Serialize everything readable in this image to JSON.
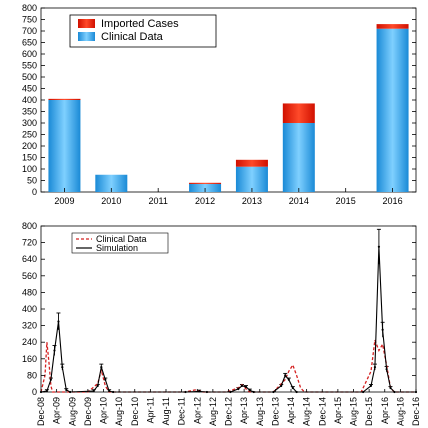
{
  "chart_data": [
    {
      "type": "bar",
      "stacked": true,
      "categories": [
        "2009",
        "2010",
        "2011",
        "2012",
        "2013",
        "2014",
        "2015",
        "2016"
      ],
      "series": [
        {
          "name": "Clinical Data",
          "values": [
            400,
            75,
            0,
            35,
            110,
            300,
            0,
            710
          ],
          "color": "#3aa8e6"
        },
        {
          "name": "Imported Cases",
          "values": [
            5,
            0,
            0,
            5,
            30,
            85,
            0,
            20
          ],
          "color": "#e8200c"
        }
      ],
      "ylim": [
        0,
        800
      ],
      "yticks": [
        0,
        50,
        100,
        150,
        200,
        250,
        300,
        350,
        400,
        450,
        500,
        550,
        600,
        650,
        700,
        750,
        800
      ],
      "legend_position": "top-left",
      "grid": false
    },
    {
      "type": "line",
      "x_ticks": [
        "Dec-08",
        "Apr-09",
        "Aug-09",
        "Dec-09",
        "Apr-10",
        "Aug-10",
        "Dec-10",
        "Apr-11",
        "Aug-11",
        "Dec-11",
        "Apr-12",
        "Aug-12",
        "Dec-12",
        "Apr-13",
        "Aug-13",
        "Dec-13",
        "Apr-14",
        "Aug-14",
        "Dec-14",
        "Apr-15",
        "Aug-15",
        "Dec-15",
        "Apr-16",
        "Aug-16",
        "Dec-16"
      ],
      "x_range": [
        "2008-12",
        "2016-12"
      ],
      "ylim": [
        0,
        800
      ],
      "yticks": [
        0,
        80,
        160,
        240,
        320,
        400,
        480,
        560,
        640,
        720,
        800
      ],
      "legend_position": "top-left",
      "grid": false,
      "series": [
        {
          "name": "Clinical Data",
          "style": "dashed",
          "color": "#d42020",
          "points": [
            [
              "2008-12-01",
              0
            ],
            [
              "2009-01-01",
              80
            ],
            [
              "2009-01-16",
              240
            ],
            [
              "2009-02-01",
              140
            ],
            [
              "2009-02-16",
              30
            ],
            [
              "2009-03-01",
              0
            ],
            [
              "2009-12-01",
              0
            ],
            [
              "2010-02-16",
              40
            ],
            [
              "2010-03-16",
              105
            ],
            [
              "2010-04-16",
              30
            ],
            [
              "2010-05-16",
              0
            ],
            [
              "2012-01-01",
              0
            ],
            [
              "2012-03-16",
              10
            ],
            [
              "2012-04-16",
              5
            ],
            [
              "2012-05-16",
              0
            ],
            [
              "2012-11-16",
              0
            ],
            [
              "2013-02-16",
              20
            ],
            [
              "2013-03-16",
              35
            ],
            [
              "2013-04-16",
              15
            ],
            [
              "2013-05-16",
              0
            ],
            [
              "2013-11-16",
              0
            ],
            [
              "2014-02-16",
              60
            ],
            [
              "2014-03-16",
              100
            ],
            [
              "2014-04-16",
              130
            ],
            [
              "2014-05-16",
              80
            ],
            [
              "2014-06-16",
              20
            ],
            [
              "2014-07-16",
              0
            ],
            [
              "2015-10-01",
              0
            ],
            [
              "2015-12-16",
              100
            ],
            [
              "2016-01-16",
              250
            ],
            [
              "2016-02-16",
              200
            ],
            [
              "2016-03-16",
              230
            ],
            [
              "2016-04-16",
              130
            ],
            [
              "2016-05-16",
              20
            ],
            [
              "2016-06-16",
              0
            ],
            [
              "2016-12-01",
              0
            ]
          ]
        },
        {
          "name": "Simulation",
          "style": "solid",
          "color": "#000000",
          "error_bars": true,
          "points": [
            [
              "2008-12-01",
              0
            ],
            [
              "2009-01-16",
              5
            ],
            [
              "2009-02-16",
              60
            ],
            [
              "2009-03-16",
              200
            ],
            [
              "2009-04-16",
              340
            ],
            [
              "2009-05-16",
              120
            ],
            [
              "2009-06-16",
              10
            ],
            [
              "2009-07-16",
              0
            ],
            [
              "2010-01-16",
              5
            ],
            [
              "2010-02-16",
              30
            ],
            [
              "2010-03-16",
              120
            ],
            [
              "2010-04-16",
              60
            ],
            [
              "2010-05-16",
              5
            ],
            [
              "2010-06-16",
              0
            ],
            [
              "2012-01-01",
              0
            ],
            [
              "2012-04-16",
              3
            ],
            [
              "2012-06-16",
              0
            ],
            [
              "2012-12-16",
              0
            ],
            [
              "2013-02-16",
              15
            ],
            [
              "2013-03-16",
              30
            ],
            [
              "2013-04-16",
              25
            ],
            [
              "2013-05-16",
              8
            ],
            [
              "2013-06-16",
              0
            ],
            [
              "2013-11-16",
              0
            ],
            [
              "2014-01-16",
              30
            ],
            [
              "2014-02-16",
              80
            ],
            [
              "2014-03-16",
              60
            ],
            [
              "2014-04-16",
              20
            ],
            [
              "2014-05-16",
              0
            ],
            [
              "2015-10-16",
              0
            ],
            [
              "2015-12-16",
              30
            ],
            [
              "2016-01-16",
              120
            ],
            [
              "2016-02-16",
              700
            ],
            [
              "2016-03-16",
              300
            ],
            [
              "2016-04-16",
              110
            ],
            [
              "2016-05-16",
              20
            ],
            [
              "2016-06-16",
              0
            ],
            [
              "2016-12-01",
              0
            ]
          ]
        }
      ]
    }
  ]
}
